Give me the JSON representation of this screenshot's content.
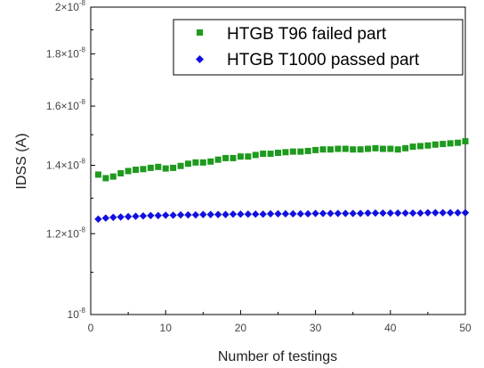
{
  "chart_data": {
    "type": "scatter",
    "xlabel": "Number of testings",
    "ylabel": "IDSS (A)",
    "xlim": [
      0,
      50
    ],
    "ylim": [
      1e-08,
      2e-08
    ],
    "y_scale": "log",
    "x_ticks": [
      0,
      10,
      20,
      30,
      40,
      50
    ],
    "x_tick_labels": [
      "0",
      "10",
      "20",
      "30",
      "40",
      "50"
    ],
    "y_ticks": [
      {
        "value": 1e-08,
        "mantissa": "",
        "exponent": "-8"
      },
      {
        "value": 1.2e-08,
        "mantissa": "1.2",
        "exponent": "-8"
      },
      {
        "value": 1.4e-08,
        "mantissa": "1.4",
        "exponent": "-8"
      },
      {
        "value": 1.6e-08,
        "mantissa": "1.6",
        "exponent": "-8"
      },
      {
        "value": 1.8e-08,
        "mantissa": "1.8",
        "exponent": "-8"
      },
      {
        "value": 2e-08,
        "mantissa": "2",
        "exponent": "-8"
      }
    ],
    "legend_position": "top-right",
    "grid": false,
    "series": [
      {
        "name": "HTGB T96 failed part",
        "marker": "square",
        "color": "#1e9a1e",
        "x": [
          1,
          2,
          3,
          4,
          5,
          6,
          7,
          8,
          9,
          10,
          11,
          12,
          13,
          14,
          15,
          16,
          17,
          18,
          19,
          20,
          21,
          22,
          23,
          24,
          25,
          26,
          27,
          28,
          29,
          30,
          31,
          32,
          33,
          34,
          35,
          36,
          37,
          38,
          39,
          40,
          41,
          42,
          43,
          44,
          45,
          46,
          47,
          48,
          49,
          50
        ],
        "y": [
          1.371e-08,
          1.36e-08,
          1.365e-08,
          1.375e-08,
          1.382e-08,
          1.386e-08,
          1.388e-08,
          1.392e-08,
          1.395e-08,
          1.39e-08,
          1.392e-08,
          1.398e-08,
          1.405e-08,
          1.409e-08,
          1.409e-08,
          1.412e-08,
          1.418e-08,
          1.423e-08,
          1.423e-08,
          1.428e-08,
          1.428e-08,
          1.433e-08,
          1.437e-08,
          1.437e-08,
          1.44e-08,
          1.442e-08,
          1.444e-08,
          1.444e-08,
          1.446e-08,
          1.449e-08,
          1.451e-08,
          1.451e-08,
          1.453e-08,
          1.453e-08,
          1.451e-08,
          1.451e-08,
          1.453e-08,
          1.455e-08,
          1.453e-08,
          1.453e-08,
          1.451e-08,
          1.455e-08,
          1.46e-08,
          1.462e-08,
          1.464e-08,
          1.467e-08,
          1.469e-08,
          1.471e-08,
          1.473e-08,
          1.478e-08
        ]
      },
      {
        "name": "HTGB T1000 passed part",
        "marker": "diamond",
        "color": "#1010e0",
        "x": [
          1,
          2,
          3,
          4,
          5,
          6,
          7,
          8,
          9,
          10,
          11,
          12,
          13,
          14,
          15,
          16,
          17,
          18,
          19,
          20,
          21,
          22,
          23,
          24,
          25,
          26,
          27,
          28,
          29,
          30,
          31,
          32,
          33,
          34,
          35,
          36,
          37,
          38,
          39,
          40,
          41,
          42,
          43,
          44,
          45,
          46,
          47,
          48,
          49,
          50
        ],
        "y": [
          1.24e-08,
          1.243e-08,
          1.245e-08,
          1.246e-08,
          1.247e-08,
          1.248e-08,
          1.249e-08,
          1.25e-08,
          1.25e-08,
          1.251e-08,
          1.251e-08,
          1.252e-08,
          1.252e-08,
          1.252e-08,
          1.253e-08,
          1.253e-08,
          1.253e-08,
          1.253e-08,
          1.254e-08,
          1.254e-08,
          1.254e-08,
          1.254e-08,
          1.254e-08,
          1.255e-08,
          1.255e-08,
          1.255e-08,
          1.255e-08,
          1.255e-08,
          1.255e-08,
          1.256e-08,
          1.256e-08,
          1.256e-08,
          1.256e-08,
          1.256e-08,
          1.256e-08,
          1.256e-08,
          1.257e-08,
          1.257e-08,
          1.257e-08,
          1.257e-08,
          1.257e-08,
          1.257e-08,
          1.257e-08,
          1.257e-08,
          1.258e-08,
          1.258e-08,
          1.258e-08,
          1.258e-08,
          1.258e-08,
          1.258e-08
        ]
      }
    ]
  }
}
